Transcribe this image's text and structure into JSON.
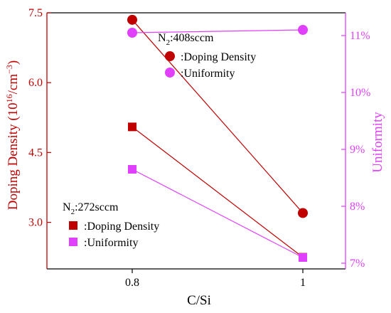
{
  "chart_data": {
    "type": "scatter",
    "xlabel": "C/Si",
    "ylabel_left": "Doping Density (10",
    "ylabel_left_sup": "16",
    "ylabel_left_mid": "/cm",
    "ylabel_left_sup2": "−3",
    "ylabel_left_end": ")",
    "ylabel_right": "Uniformity",
    "x_ticks": [
      "0.8",
      "1"
    ],
    "x_tick_values": [
      0.8,
      1.0
    ],
    "xlim": [
      0.7,
      1.05
    ],
    "y_left_ticks": [
      "3.0",
      "4.5",
      "6.0",
      "7.5"
    ],
    "y_left_tick_values": [
      3.0,
      4.5,
      6.0,
      7.5
    ],
    "y_left_lim": [
      2.0,
      7.5
    ],
    "y_right_ticks": [
      "7%",
      "8%",
      "9%",
      "10%",
      "11%"
    ],
    "y_right_tick_values": [
      7,
      8,
      9,
      10,
      11
    ],
    "y_right_lim": [
      6.9,
      11.4
    ],
    "colors": {
      "doping": "#c00000",
      "uniformity": "#e040fb",
      "axis": "#000000"
    },
    "groups": [
      {
        "group_label": "N",
        "group_label_sub": "2",
        "group_label_end": ":408sccm",
        "marker": "circle",
        "doping_label": ":Doping Density",
        "uniformity_label": ":Uniformity",
        "doping": {
          "x": [
            0.8,
            1.0
          ],
          "y": [
            7.35,
            3.2
          ]
        },
        "uniformity": {
          "x": [
            0.8,
            1.0
          ],
          "y": [
            11.05,
            11.1
          ]
        }
      },
      {
        "group_label": "N",
        "group_label_sub": "2",
        "group_label_end": ":272sccm",
        "marker": "square",
        "doping_label": ":Doping Density",
        "uniformity_label": ":Uniformity",
        "doping": {
          "x": [
            0.8,
            1.0
          ],
          "y": [
            5.05,
            2.25
          ]
        },
        "uniformity": {
          "x": [
            0.8,
            1.0
          ],
          "y": [
            8.65,
            7.1
          ]
        }
      }
    ]
  }
}
